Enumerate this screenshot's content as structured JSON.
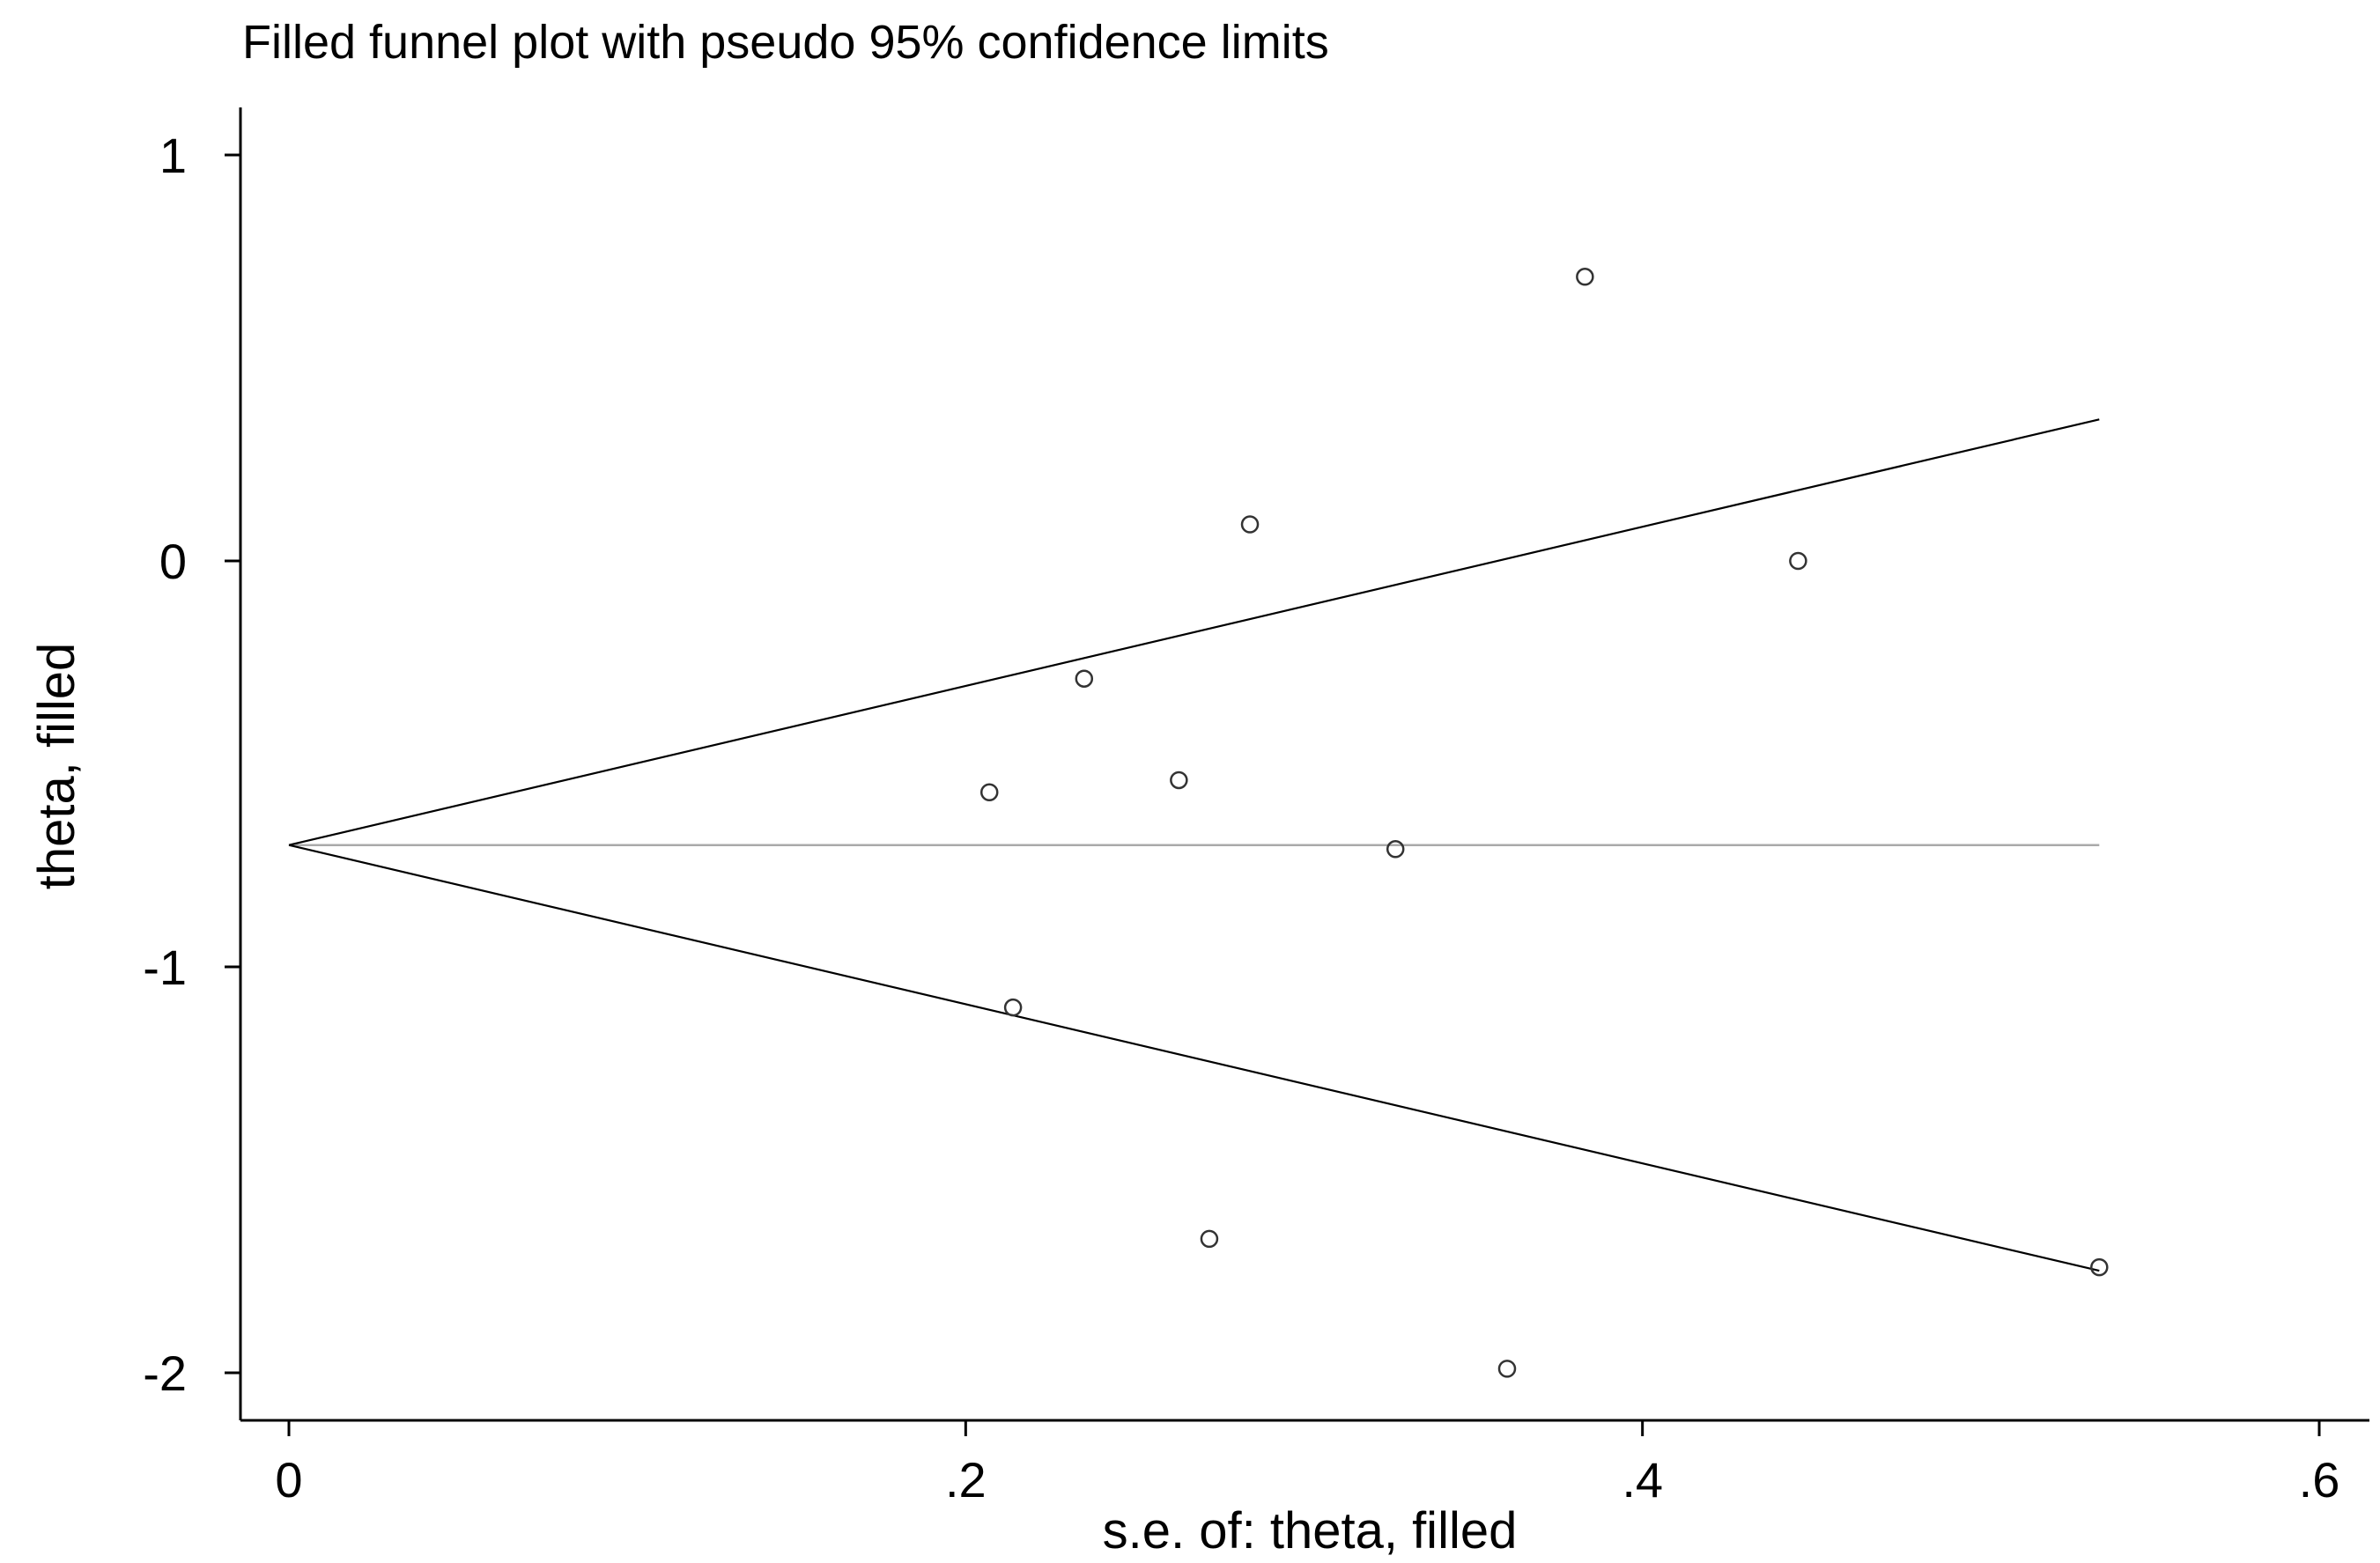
{
  "chart_data": {
    "type": "scatter",
    "title": "Filled funnel plot with pseudo 95% confidence limits",
    "xlabel": "s.e. of: theta, filled",
    "ylabel": "theta, filled",
    "xlim": [
      0,
      0.6
    ],
    "ylim": [
      -2,
      1
    ],
    "x_ticks": [
      0,
      0.2,
      0.4,
      0.6
    ],
    "x_tick_labels": [
      "0",
      ".2",
      ".4",
      ".6"
    ],
    "y_ticks": [
      -2,
      -1,
      0,
      1
    ],
    "y_tick_labels": [
      "-2",
      "-1",
      "0",
      "1"
    ],
    "grid": false,
    "legend": "none",
    "pooled_estimate": -0.7,
    "max_se": 0.535,
    "series": [
      {
        "points": [
          {
            "x": 0.383,
            "y": 0.7
          },
          {
            "x": 0.284,
            "y": 0.09
          },
          {
            "x": 0.446,
            "y": 0.0
          },
          {
            "x": 0.235,
            "y": -0.29
          },
          {
            "x": 0.263,
            "y": -0.54
          },
          {
            "x": 0.207,
            "y": -0.57
          },
          {
            "x": 0.327,
            "y": -0.71
          },
          {
            "x": 0.214,
            "y": -1.1
          },
          {
            "x": 0.272,
            "y": -1.67
          },
          {
            "x": 0.535,
            "y": -1.74
          },
          {
            "x": 0.36,
            "y": -1.99
          }
        ]
      }
    ],
    "colors": {
      "points": "#333333",
      "ci_lines": "#000000",
      "pooled_line": "#aaaaaa",
      "axes": "#000000"
    }
  }
}
